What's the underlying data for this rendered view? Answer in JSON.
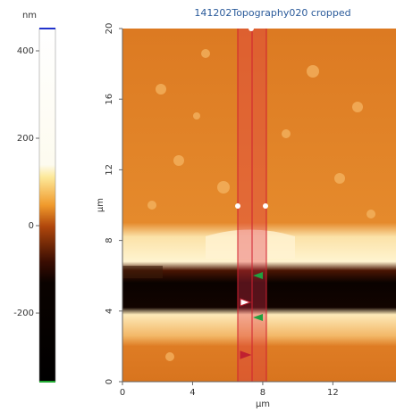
{
  "title": "141202Topography020 cropped",
  "colorbar": {
    "unit": "nm",
    "lim": [
      -357,
      451
    ],
    "ticks": [
      400,
      200,
      0,
      -200
    ]
  },
  "x_axis": {
    "label": "µm",
    "lim": [
      0,
      15.6
    ],
    "ticks": [
      0,
      4,
      8,
      12
    ]
  },
  "y_axis": {
    "label": "µm",
    "lim": [
      0,
      20
    ],
    "ticks": [
      0,
      4,
      8,
      12,
      16,
      20
    ]
  }
}
